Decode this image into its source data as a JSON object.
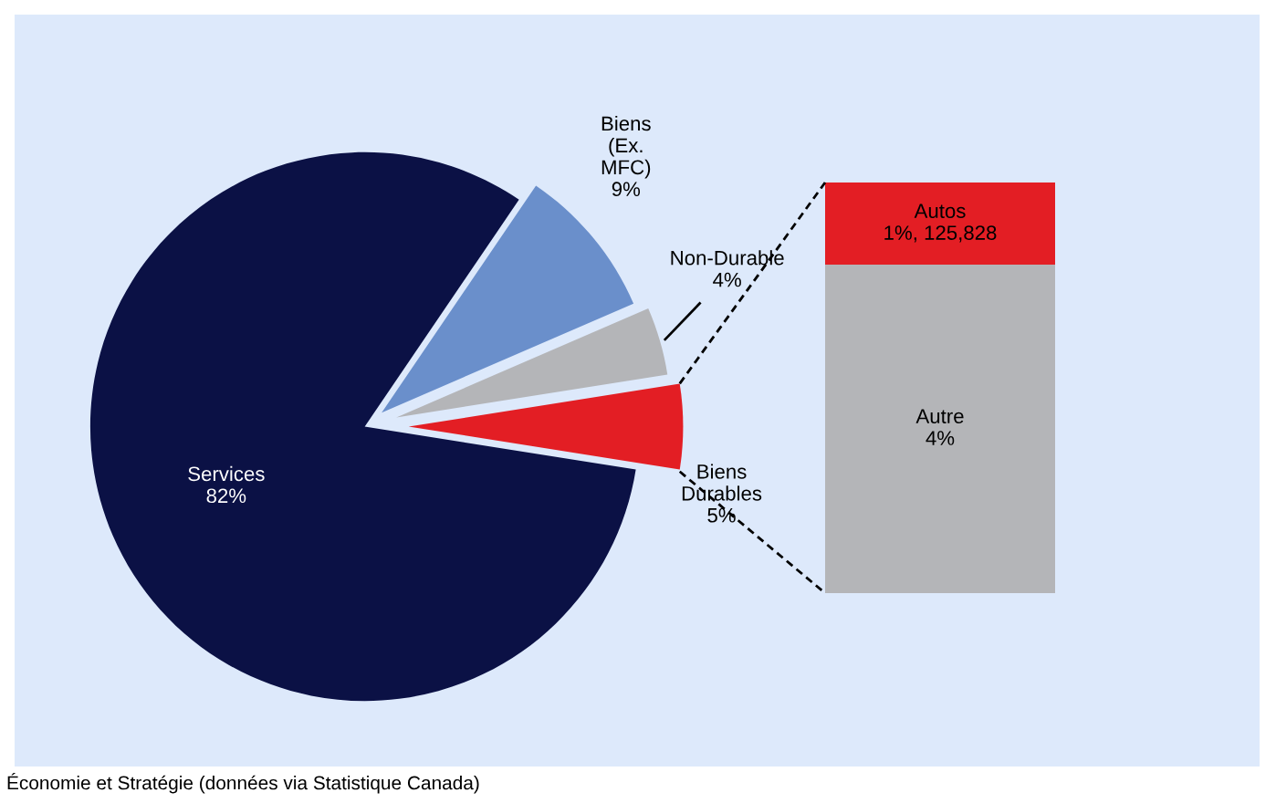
{
  "chart_data": [
    {
      "type": "pie",
      "categories": [
        "Services",
        "Biens\n(Ex.\nMFC)",
        "Non-Durable",
        "Biens\nDurables"
      ],
      "values": [
        82,
        9,
        4,
        5
      ],
      "colors": [
        "#0b1145",
        "#6a8fcb",
        "#b4b5b8",
        "#e31e24"
      ],
      "value_labels": [
        "82%",
        "9%",
        "4%",
        "5%"
      ],
      "annotations": [
        "Économie et Stratégie (données via Statistique Canada)"
      ]
    },
    {
      "type": "bar",
      "stacked": true,
      "categories": [
        null
      ],
      "series": [
        {
          "name": "Autre",
          "color": "#b4b5b8",
          "values": [
            4
          ],
          "value_labels": [
            "4%"
          ]
        },
        {
          "name": "Autos",
          "color": "#e31e24",
          "values": [
            1
          ],
          "value_labels": [
            "1%, 125,828"
          ]
        }
      ]
    }
  ]
}
